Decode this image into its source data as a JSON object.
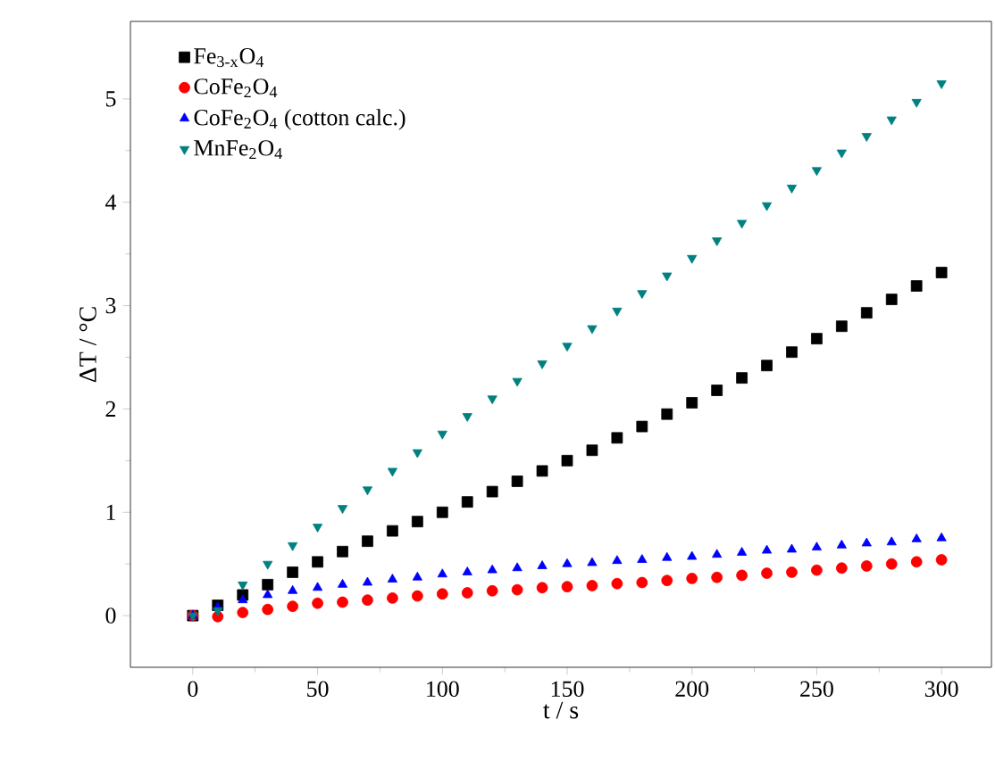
{
  "chart_data": {
    "type": "scatter",
    "xlabel": "t / s",
    "ylabel": "ΔT / °C",
    "x": [
      0,
      10,
      20,
      30,
      40,
      50,
      60,
      70,
      80,
      90,
      100,
      110,
      120,
      130,
      140,
      150,
      160,
      170,
      180,
      190,
      200,
      210,
      220,
      230,
      240,
      250,
      260,
      270,
      280,
      290,
      300
    ],
    "series": [
      {
        "name": "Fe$_{3-x}$O$_{4}$",
        "color": "#000000",
        "marker": "square",
        "values": [
          0,
          0.1,
          0.2,
          0.3,
          0.42,
          0.52,
          0.62,
          0.72,
          0.82,
          0.91,
          1.0,
          1.1,
          1.2,
          1.3,
          1.4,
          1.5,
          1.6,
          1.72,
          1.83,
          1.95,
          2.06,
          2.18,
          2.3,
          2.42,
          2.55,
          2.68,
          2.8,
          2.93,
          3.06,
          3.19,
          3.32
        ]
      },
      {
        "name": "CoFe$_{2}$O$_{4}$",
        "color": "#ff0000",
        "marker": "circle",
        "values": [
          0,
          -0.01,
          0.03,
          0.06,
          0.09,
          0.12,
          0.13,
          0.15,
          0.17,
          0.19,
          0.21,
          0.22,
          0.24,
          0.25,
          0.27,
          0.28,
          0.29,
          0.31,
          0.32,
          0.34,
          0.36,
          0.37,
          0.39,
          0.41,
          0.42,
          0.44,
          0.46,
          0.48,
          0.5,
          0.52,
          0.54
        ]
      },
      {
        "name": "CoFe$_{2}$O$_{4}$ (cotton calc.)",
        "color": "#0000ff",
        "marker": "triangle",
        "values": [
          0,
          0.08,
          0.15,
          0.2,
          0.24,
          0.27,
          0.3,
          0.32,
          0.35,
          0.37,
          0.4,
          0.42,
          0.44,
          0.46,
          0.48,
          0.5,
          0.51,
          0.53,
          0.54,
          0.56,
          0.57,
          0.59,
          0.61,
          0.63,
          0.64,
          0.66,
          0.68,
          0.7,
          0.71,
          0.74,
          0.75
        ]
      },
      {
        "name": "MnFe$_{2}$O$_{4}$",
        "color": "#008080",
        "marker": "triangle-down",
        "values": [
          0,
          0.05,
          0.3,
          0.5,
          0.68,
          0.86,
          1.04,
          1.22,
          1.4,
          1.58,
          1.76,
          1.93,
          2.1,
          2.27,
          2.44,
          2.61,
          2.78,
          2.95,
          3.12,
          3.29,
          3.46,
          3.63,
          3.8,
          3.97,
          4.14,
          4.31,
          4.48,
          4.64,
          4.8,
          4.97,
          5.15
        ]
      }
    ],
    "xlim": [
      -25,
      320
    ],
    "ylim": [
      -0.5,
      5.75
    ],
    "xticks": [
      0,
      50,
      100,
      150,
      200,
      250,
      300
    ],
    "yticks": [
      0,
      1,
      2,
      3,
      4,
      5
    ],
    "grid": false,
    "legend": "top left"
  }
}
